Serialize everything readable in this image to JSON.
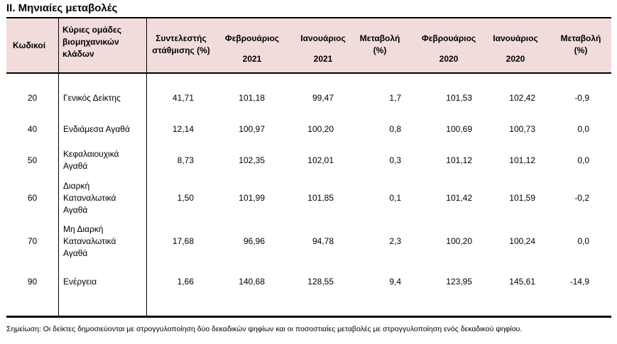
{
  "title": "II. Μηνιαίες μεταβολές",
  "headers": {
    "code": "Κωδικοί",
    "group": [
      "Κύριες ομάδες",
      "βιομηχανικών",
      "κλάδων"
    ],
    "weight": [
      "Συντελεστής",
      "στάθμισης (%)"
    ],
    "feb21": [
      "Φεβρουάριος",
      "2021"
    ],
    "jan21": [
      "Ιανουάριος",
      "2021"
    ],
    "chg21": [
      "Μεταβολή",
      "(%)"
    ],
    "feb20": [
      "Φεβρουάριος",
      "2020"
    ],
    "jan20": [
      "Ιανουάριος",
      "2020"
    ],
    "chg20": [
      "Μεταβολή",
      "(%)"
    ]
  },
  "rows": [
    {
      "code": "20",
      "name": [
        "Γενικός Δείκτης"
      ],
      "weight": "41,71",
      "feb21": "101,18",
      "jan21": "99,47",
      "chg21": "1,7",
      "feb20": "101,53",
      "jan20": "102,42",
      "chg20": "-0,9"
    },
    {
      "code": "40",
      "name": [
        "Ενδιάμεσα Αγαθά"
      ],
      "weight": "12,14",
      "feb21": "100,97",
      "jan21": "100,20",
      "chg21": "0,8",
      "feb20": "100,69",
      "jan20": "100,73",
      "chg20": "0,0"
    },
    {
      "code": "50",
      "name": [
        "Κεφαλαιουχικά",
        "Αγαθά"
      ],
      "weight": "8,73",
      "feb21": "102,35",
      "jan21": "102,01",
      "chg21": "0,3",
      "feb20": "101,12",
      "jan20": "101,12",
      "chg20": "0,0"
    },
    {
      "code": "60",
      "name": [
        "Διαρκή",
        "Καταναλωτικά",
        "Αγαθά"
      ],
      "weight": "1,50",
      "feb21": "101,99",
      "jan21": "101,85",
      "chg21": "0,1",
      "feb20": "101,42",
      "jan20": "101,59",
      "chg20": "-0,2"
    },
    {
      "code": "70",
      "name": [
        "Μη Διαρκή",
        "Καταναλωτικά",
        "Αγαθά"
      ],
      "weight": "17,68",
      "feb21": "96,96",
      "jan21": "94,78",
      "chg21": "2,3",
      "feb20": "100,20",
      "jan20": "100,24",
      "chg20": "0,0"
    },
    {
      "code": "90",
      "name": [
        "Ενέργεια"
      ],
      "weight": "1,66",
      "feb21": "140,68",
      "jan21": "128,55",
      "chg21": "9,4",
      "feb20": "123,95",
      "jan20": "145,61",
      "chg20": "-14,9"
    }
  ],
  "note": "Σημείωση: Οι δείκτες δημοσιεύονται με στρογγυλοποίηση δύο δεκαδικών ψηφίων και οι ποσοστιαίες μεταβολές με στρογγυλοποίηση ενός δεκαδικού ψηφίου."
}
